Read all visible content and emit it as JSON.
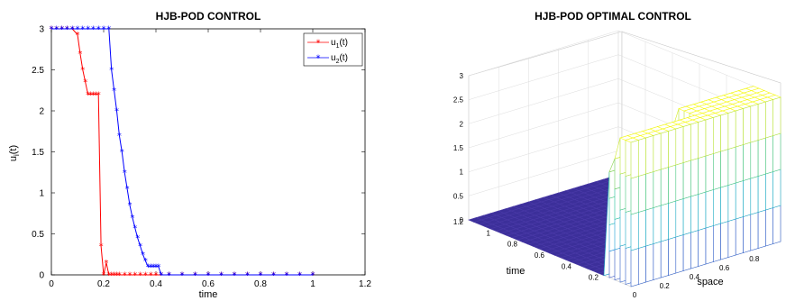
{
  "chart_data": [
    {
      "type": "line",
      "title": "HJB-POD CONTROL",
      "xlabel": "time",
      "ylabel": "u",
      "ylabel_sub": "i",
      "ylabel_suffix": "(t)",
      "xlim": [
        0,
        1.2
      ],
      "ylim": [
        0,
        3
      ],
      "xticks": [
        "0",
        "0.2",
        "0.4",
        "0.6",
        "0.8",
        "1",
        "1.2"
      ],
      "yticks": [
        "0",
        "0.5",
        "1",
        "1.5",
        "2",
        "2.5",
        "3"
      ],
      "legend": "top-right",
      "series": [
        {
          "name": "u",
          "name_sub": "1",
          "name_suffix": "(t)",
          "color": "#ff0000",
          "x": [
            0,
            0.02,
            0.04,
            0.06,
            0.08,
            0.1,
            0.11,
            0.12,
            0.13,
            0.14,
            0.15,
            0.16,
            0.17,
            0.18,
            0.19,
            0.2,
            0.21,
            0.22,
            0.23,
            0.24,
            0.25,
            0.26,
            0.28,
            0.3,
            0.32,
            0.34,
            0.36,
            0.38,
            0.4,
            0.42,
            0.45,
            0.5,
            0.55,
            0.6,
            0.65,
            0.7,
            0.75,
            0.8,
            0.85,
            0.9,
            0.95,
            1.0
          ],
          "y": [
            3,
            3,
            3,
            3,
            3,
            2.93,
            2.7,
            2.5,
            2.35,
            2.2,
            2.2,
            2.2,
            2.2,
            2.2,
            0.35,
            0,
            0.15,
            0,
            0,
            0,
            0,
            0,
            0,
            0,
            0,
            0,
            0,
            0,
            0,
            0,
            0,
            0,
            0,
            0,
            0,
            0,
            0,
            0,
            0,
            0,
            0,
            0
          ]
        },
        {
          "name": "u",
          "name_sub": "2",
          "name_suffix": "(t)",
          "color": "#0000ff",
          "x": [
            0,
            0.02,
            0.04,
            0.06,
            0.08,
            0.1,
            0.12,
            0.14,
            0.16,
            0.18,
            0.2,
            0.22,
            0.23,
            0.24,
            0.25,
            0.26,
            0.27,
            0.28,
            0.29,
            0.3,
            0.31,
            0.32,
            0.33,
            0.34,
            0.35,
            0.36,
            0.37,
            0.38,
            0.39,
            0.4,
            0.41,
            0.42,
            0.45,
            0.5,
            0.55,
            0.6,
            0.65,
            0.7,
            0.75,
            0.8,
            0.85,
            0.9,
            0.95,
            1.0
          ],
          "y": [
            3,
            3,
            3,
            3,
            3,
            3,
            3,
            3,
            3,
            3,
            3,
            3,
            2.5,
            2.25,
            2.0,
            1.7,
            1.5,
            1.25,
            1.05,
            0.85,
            0.7,
            0.57,
            0.45,
            0.35,
            0.25,
            0.17,
            0.1,
            0.1,
            0.1,
            0.1,
            0.1,
            0,
            0,
            0,
            0,
            0,
            0,
            0,
            0,
            0,
            0,
            0,
            0,
            0
          ]
        }
      ]
    },
    {
      "type": "surface",
      "title": "HJB-POD OPTIMAL CONTROL",
      "xlabel": "space",
      "ylabel": "time",
      "space_ticks": [
        "0",
        "0.2",
        "0.4",
        "0.6",
        "0.8"
      ],
      "time_ticks": [
        "0.2",
        "0.4",
        "0.6",
        "0.8",
        "1",
        "1.2"
      ],
      "z_ticks": [
        "0",
        "0.5",
        "1",
        "1.5",
        "2",
        "2.5",
        "3"
      ],
      "xlim": [
        0,
        1
      ],
      "ylim": [
        0,
        1.2
      ],
      "zlim": [
        0,
        3
      ],
      "description_values": {
        "u1_region_space": [
          0,
          0.5
        ],
        "u2_region_space": [
          0.5,
          1
        ]
      }
    }
  ]
}
